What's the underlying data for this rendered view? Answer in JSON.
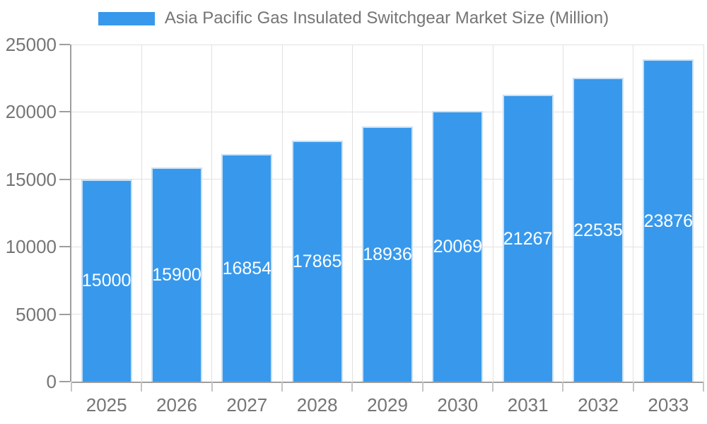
{
  "chart_data": {
    "type": "bar",
    "title": "Asia Pacific Gas Insulated Switchgear Market Size (Million)",
    "categories": [
      "2025",
      "2026",
      "2027",
      "2028",
      "2029",
      "2030",
      "2031",
      "2032",
      "2033"
    ],
    "values": [
      15000,
      15900,
      16854,
      17865,
      18936,
      20069,
      21267,
      22535,
      23876
    ],
    "xlabel": "",
    "ylabel": "",
    "ylim": [
      0,
      25000
    ],
    "y_ticks": [
      0,
      5000,
      10000,
      15000,
      20000,
      25000
    ],
    "grid": "both",
    "legend_position": "top",
    "bar_color": "#3899EC",
    "bar_border_color": "#C9E0F5",
    "value_label_color": "#FFFFFF",
    "axis_color": "#9E9E9E",
    "gridline_color": "#E1E1E1",
    "tick_label_color": "#757575"
  }
}
